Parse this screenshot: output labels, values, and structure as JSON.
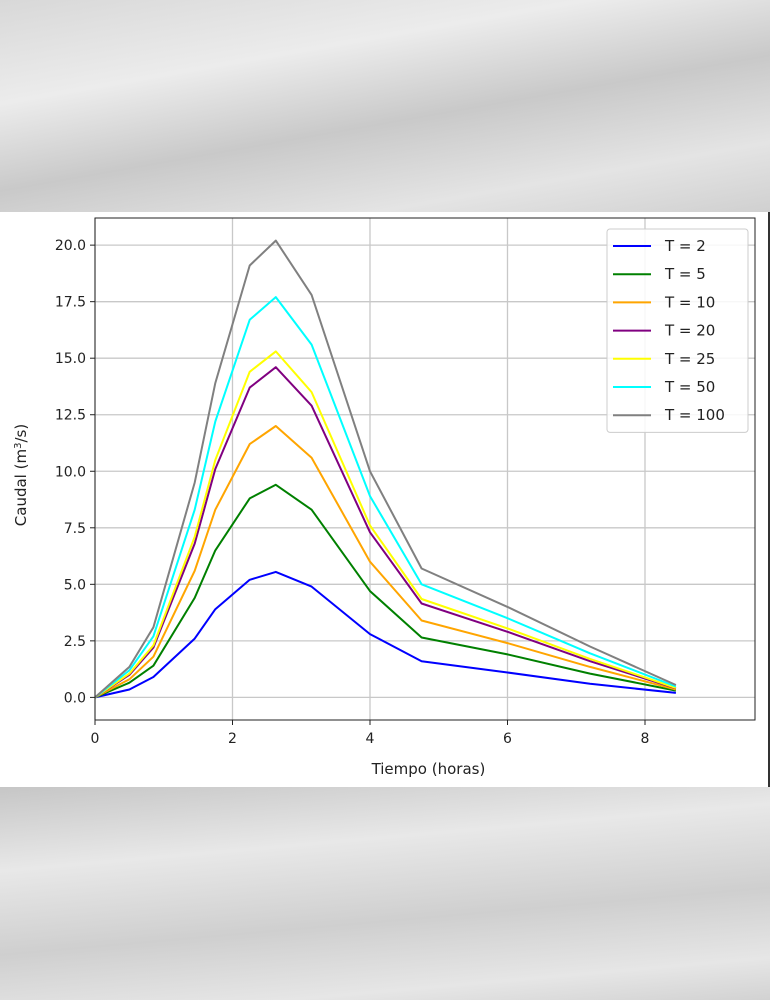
{
  "chart_data": {
    "type": "line",
    "title": "",
    "xlabel": "Tiempo (horas)",
    "ylabel_base": "Caudal (m",
    "ylabel_sup": "3",
    "ylabel_tail": "/s)",
    "xlim": [
      0,
      9.6
    ],
    "ylim": [
      -1.0,
      21.2
    ],
    "xticks": [
      0,
      2,
      4,
      6,
      8
    ],
    "yticks": [
      0.0,
      2.5,
      5.0,
      7.5,
      10.0,
      12.5,
      15.0,
      17.5,
      20.0
    ],
    "grid": true,
    "legend_position": "top-right",
    "x": [
      0,
      0.5,
      0.85,
      1.45,
      1.75,
      2.25,
      2.63,
      3.15,
      4.0,
      4.75,
      6.0,
      7.2,
      8.45
    ],
    "series": [
      {
        "name": "T = 2",
        "color": "#0000ff",
        "values": [
          0.0,
          0.35,
          0.9,
          2.6,
          3.9,
          5.2,
          5.55,
          4.9,
          2.8,
          1.6,
          1.1,
          0.6,
          0.2
        ]
      },
      {
        "name": "T = 5",
        "color": "#008000",
        "values": [
          0.0,
          0.65,
          1.4,
          4.4,
          6.5,
          8.8,
          9.4,
          8.3,
          4.7,
          2.65,
          1.9,
          1.05,
          0.3
        ]
      },
      {
        "name": "T = 10",
        "color": "#ffa500",
        "values": [
          0.0,
          0.8,
          1.8,
          5.6,
          8.3,
          11.2,
          12.0,
          10.6,
          6.0,
          3.4,
          2.4,
          1.35,
          0.35
        ]
      },
      {
        "name": "T = 20",
        "color": "#800080",
        "values": [
          0.0,
          1.0,
          2.2,
          6.8,
          10.1,
          13.7,
          14.6,
          12.9,
          7.3,
          4.15,
          2.9,
          1.6,
          0.4
        ]
      },
      {
        "name": "T = 25",
        "color": "#ffff00",
        "values": [
          0.0,
          1.05,
          2.3,
          7.1,
          10.5,
          14.4,
          15.3,
          13.5,
          7.6,
          4.35,
          3.05,
          1.7,
          0.42
        ]
      },
      {
        "name": "T = 50",
        "color": "#00ffff",
        "values": [
          0.0,
          1.2,
          2.7,
          8.3,
          12.2,
          16.7,
          17.7,
          15.6,
          8.9,
          5.0,
          3.5,
          1.95,
          0.48
        ]
      },
      {
        "name": "T = 100",
        "color": "#808080",
        "values": [
          0.0,
          1.35,
          3.1,
          9.5,
          13.9,
          19.1,
          20.2,
          17.8,
          10.0,
          5.7,
          4.0,
          2.25,
          0.55
        ]
      }
    ]
  }
}
